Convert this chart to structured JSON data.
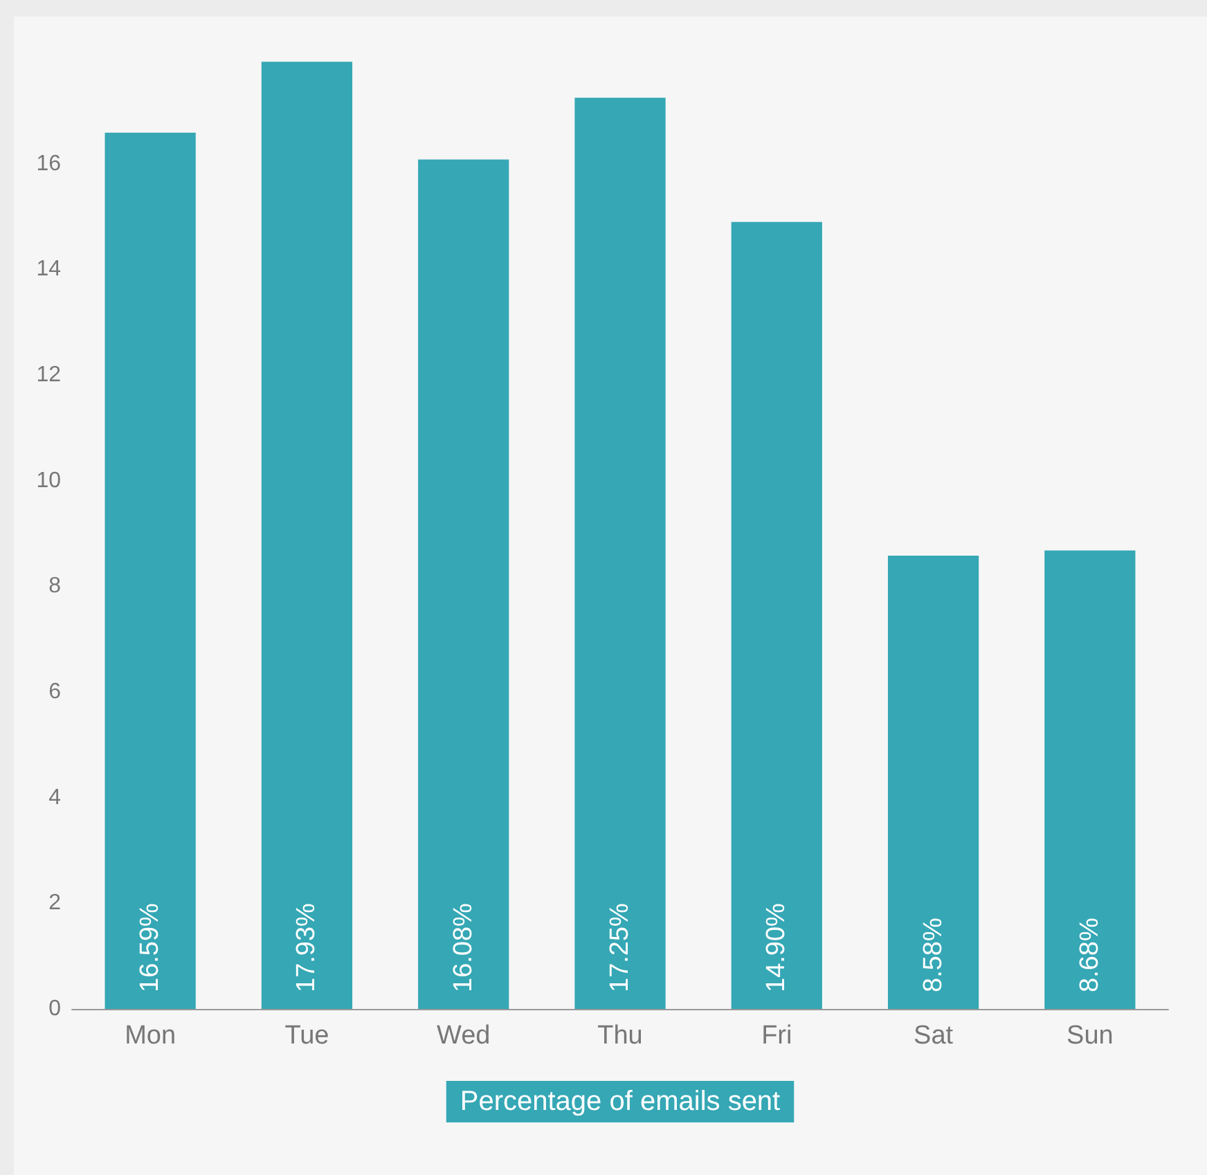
{
  "chart_data": {
    "type": "bar",
    "xlabel": "Percentage of emails sent",
    "categories": [
      "Mon",
      "Tue",
      "Wed",
      "Thu",
      "Fri",
      "Sat",
      "Sun"
    ],
    "values": [
      16.59,
      17.93,
      16.08,
      17.25,
      14.9,
      8.58,
      8.68
    ],
    "value_labels": [
      "16.59%",
      "17.93%",
      "16.08%",
      "17.25%",
      "14.90%",
      "8.58%",
      "8.68%"
    ],
    "color": "#35a7b5",
    "ylim": [
      0,
      18
    ],
    "yticks": [
      0,
      2,
      4,
      6,
      8,
      10,
      12,
      14,
      16
    ],
    "grid": false
  }
}
